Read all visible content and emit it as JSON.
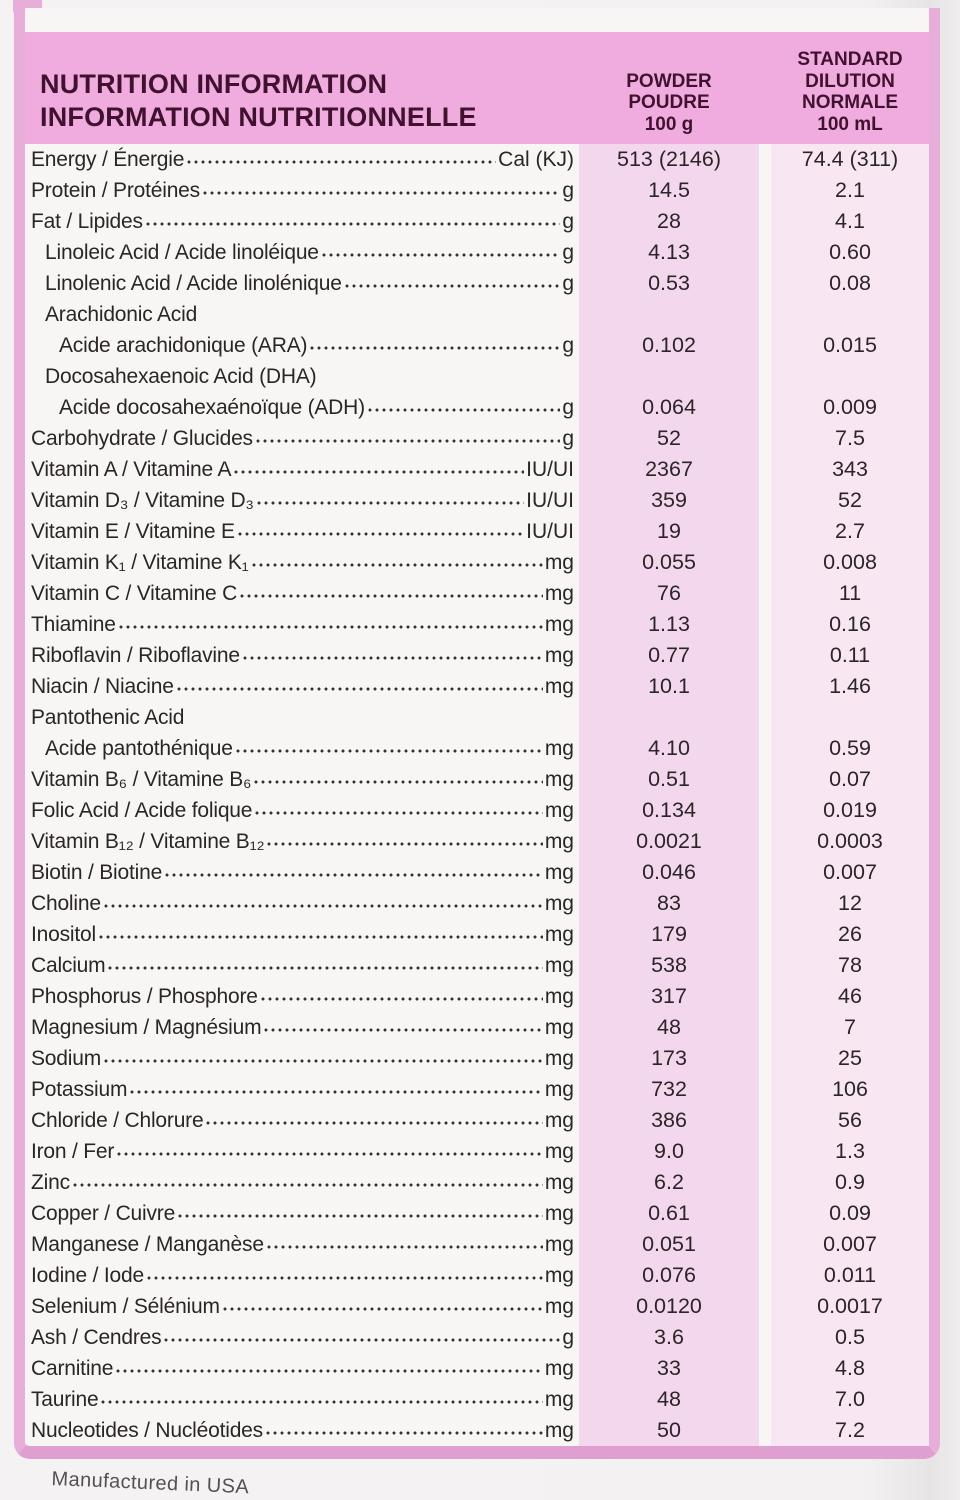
{
  "header": {
    "title": "NUTRITION INFORMATION\nINFORMATION NUTRITIONNELLE",
    "col_powder": "POWDER\nPOUDRE\n100 g",
    "col_dilution": "STANDARD\nDILUTION\nNORMALE\n100 mL"
  },
  "rows": [
    {
      "label": "Energy / Énergie",
      "indent": 0,
      "unit": "Cal (KJ)",
      "powder": "513 (2146)",
      "dilution": "74.4 (311)"
    },
    {
      "label": "Protein / Protéines",
      "indent": 0,
      "unit": "g",
      "powder": "14.5",
      "dilution": "2.1"
    },
    {
      "label": "Fat / Lipides",
      "indent": 0,
      "unit": "g",
      "powder": "28",
      "dilution": "4.1"
    },
    {
      "label": "Linoleic Acid / Acide linoléique",
      "indent": 1,
      "unit": "g",
      "powder": "4.13",
      "dilution": "0.60"
    },
    {
      "label": "Linolenic Acid / Acide linolénique",
      "indent": 1,
      "unit": "g",
      "powder": "0.53",
      "dilution": "0.08"
    },
    {
      "label": "Arachidonic Acid",
      "indent": 1,
      "unit": null,
      "powder": null,
      "dilution": null
    },
    {
      "label": "Acide arachidonique (ARA)",
      "indent": 2,
      "unit": "g",
      "powder": "0.102",
      "dilution": "0.015"
    },
    {
      "label": "Docosahexaenoic Acid (DHA)",
      "indent": 1,
      "unit": null,
      "powder": null,
      "dilution": null
    },
    {
      "label": "Acide docosahexaénoïque (ADH)",
      "indent": 2,
      "unit": "g",
      "powder": "0.064",
      "dilution": "0.009"
    },
    {
      "label": "Carbohydrate / Glucides",
      "indent": 0,
      "unit": "g",
      "powder": "52",
      "dilution": "7.5"
    },
    {
      "label": "Vitamin A / Vitamine A",
      "indent": 0,
      "unit": "IU/UI",
      "powder": "2367",
      "dilution": "343"
    },
    {
      "label": "Vitamin D₃ / Vitamine D₃",
      "indent": 0,
      "unit": "IU/UI",
      "powder": "359",
      "dilution": "52"
    },
    {
      "label": "Vitamin E / Vitamine E",
      "indent": 0,
      "unit": "IU/UI",
      "powder": "19",
      "dilution": "2.7"
    },
    {
      "label": "Vitamin K₁ / Vitamine K₁",
      "indent": 0,
      "unit": "mg",
      "powder": "0.055",
      "dilution": "0.008"
    },
    {
      "label": "Vitamin C / Vitamine C",
      "indent": 0,
      "unit": "mg",
      "powder": "76",
      "dilution": "11"
    },
    {
      "label": "Thiamine",
      "indent": 0,
      "unit": "mg",
      "powder": "1.13",
      "dilution": "0.16"
    },
    {
      "label": "Riboflavin / Riboflavine",
      "indent": 0,
      "unit": "mg",
      "powder": "0.77",
      "dilution": "0.11"
    },
    {
      "label": "Niacin / Niacine",
      "indent": 0,
      "unit": "mg",
      "powder": "10.1",
      "dilution": "1.46"
    },
    {
      "label": "Pantothenic Acid",
      "indent": 0,
      "unit": null,
      "powder": null,
      "dilution": null
    },
    {
      "label": "Acide pantothénique",
      "indent": 1,
      "unit": "mg",
      "powder": "4.10",
      "dilution": "0.59"
    },
    {
      "label": "Vitamin B₆ / Vitamine B₆",
      "indent": 0,
      "unit": "mg",
      "powder": "0.51",
      "dilution": "0.07"
    },
    {
      "label": "Folic Acid / Acide folique",
      "indent": 0,
      "unit": "mg",
      "powder": "0.134",
      "dilution": "0.019"
    },
    {
      "label": "Vitamin B₁₂ / Vitamine B₁₂",
      "indent": 0,
      "unit": "mg",
      "powder": "0.0021",
      "dilution": "0.0003"
    },
    {
      "label": "Biotin / Biotine",
      "indent": 0,
      "unit": "mg",
      "powder": "0.046",
      "dilution": "0.007"
    },
    {
      "label": "Choline",
      "indent": 0,
      "unit": "mg",
      "powder": "83",
      "dilution": "12"
    },
    {
      "label": "Inositol",
      "indent": 0,
      "unit": "mg",
      "powder": "179",
      "dilution": "26"
    },
    {
      "label": "Calcium",
      "indent": 0,
      "unit": "mg",
      "powder": "538",
      "dilution": "78"
    },
    {
      "label": "Phosphorus / Phosphore",
      "indent": 0,
      "unit": "mg",
      "powder": "317",
      "dilution": "46"
    },
    {
      "label": "Magnesium / Magnésium",
      "indent": 0,
      "unit": "mg",
      "powder": "48",
      "dilution": "7"
    },
    {
      "label": "Sodium",
      "indent": 0,
      "unit": "mg",
      "powder": "173",
      "dilution": "25"
    },
    {
      "label": "Potassium",
      "indent": 0,
      "unit": "mg",
      "powder": "732",
      "dilution": "106"
    },
    {
      "label": "Chloride / Chlorure",
      "indent": 0,
      "unit": "mg",
      "powder": "386",
      "dilution": "56"
    },
    {
      "label": "Iron / Fer",
      "indent": 0,
      "unit": "mg",
      "powder": "9.0",
      "dilution": "1.3"
    },
    {
      "label": "Zinc",
      "indent": 0,
      "unit": "mg",
      "powder": "6.2",
      "dilution": "0.9"
    },
    {
      "label": "Copper / Cuivre",
      "indent": 0,
      "unit": "mg",
      "powder": "0.61",
      "dilution": "0.09"
    },
    {
      "label": "Manganese / Manganèse",
      "indent": 0,
      "unit": "mg",
      "powder": "0.051",
      "dilution": "0.007"
    },
    {
      "label": "Iodine / Iode",
      "indent": 0,
      "unit": "mg",
      "powder": "0.076",
      "dilution": "0.011"
    },
    {
      "label": "Selenium / Sélénium",
      "indent": 0,
      "unit": "mg",
      "powder": "0.0120",
      "dilution": "0.0017"
    },
    {
      "label": "Ash / Cendres",
      "indent": 0,
      "unit": "g",
      "powder": "3.6",
      "dilution": "0.5"
    },
    {
      "label": "Carnitine",
      "indent": 0,
      "unit": "mg",
      "powder": "33",
      "dilution": "4.8"
    },
    {
      "label": "Taurine",
      "indent": 0,
      "unit": "mg",
      "powder": "48",
      "dilution": "7.0"
    },
    {
      "label": "Nucleotides / Nucléotides",
      "indent": 0,
      "unit": "mg",
      "powder": "50",
      "dilution": "7.2"
    }
  ],
  "footer": {
    "text": "Manufactured in USA"
  },
  "colors": {
    "page_bg": "#f2f0f1",
    "paper": "#f8f6f5",
    "header_band": "#f0acdf",
    "frame_pink": "#e7aeda",
    "frame_dark_pink": "#df9fd1",
    "powder_stripe": "#f3d7ed",
    "dilution_stripe": "#f8e7f3",
    "header_text": "#41122f",
    "body_text": "#2c2528"
  }
}
